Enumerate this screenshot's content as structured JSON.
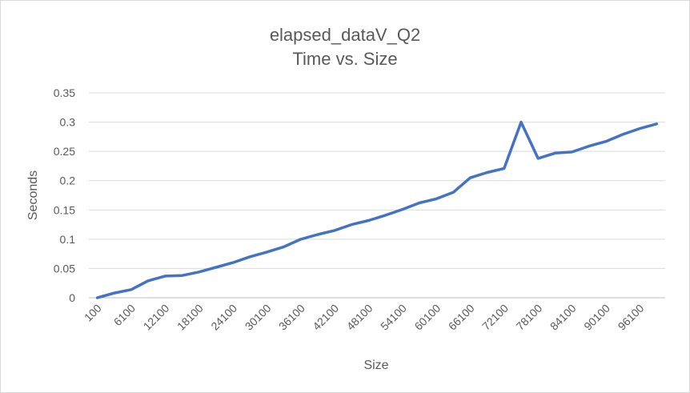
{
  "chart_data": {
    "type": "line",
    "title": "elapsed_dataV_Q2",
    "subtitle": "Time vs. Size",
    "xlabel": "Size",
    "ylabel": "Seconds",
    "ylim": [
      0,
      0.35
    ],
    "yticks": [
      "0",
      "0.05",
      "0.1",
      "0.15",
      "0.2",
      "0.25",
      "0.3",
      "0.35"
    ],
    "xtick_labels": [
      "100",
      "6100",
      "12100",
      "18100",
      "24100",
      "30100",
      "36100",
      "42100",
      "48100",
      "54100",
      "60100",
      "66100",
      "72100",
      "78100",
      "84100",
      "90100",
      "96100"
    ],
    "grid": true,
    "legend": "none",
    "color": "#4472c4",
    "series": [
      {
        "x": [
          100,
          3100,
          6100,
          9100,
          12100,
          15100,
          18100,
          21100,
          24100,
          27100,
          30100,
          33100,
          36100,
          39100,
          42100,
          45100,
          48100,
          51100,
          54100,
          57100,
          60100,
          63100,
          66100,
          69100,
          72100,
          75100,
          78100,
          81100,
          84100,
          87100,
          90100,
          93100,
          96100,
          99100
        ],
        "values": [
          0.0,
          0.008,
          0.014,
          0.029,
          0.037,
          0.038,
          0.044,
          0.052,
          0.06,
          0.07,
          0.078,
          0.087,
          0.1,
          0.108,
          0.115,
          0.125,
          0.132,
          0.141,
          0.151,
          0.162,
          0.169,
          0.18,
          0.205,
          0.214,
          0.221,
          0.3,
          0.238,
          0.247,
          0.249,
          0.259,
          0.267,
          0.279,
          0.289,
          0.297
        ]
      }
    ]
  }
}
